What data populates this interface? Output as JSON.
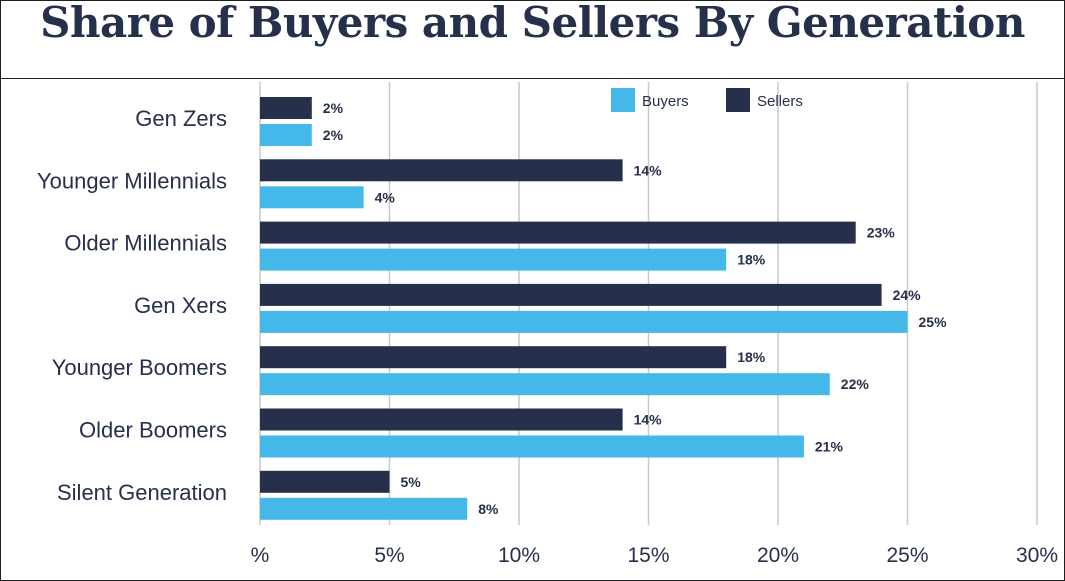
{
  "chart_data": {
    "type": "bar",
    "orientation": "horizontal",
    "title": "Share of Buyers and Sellers By Generation",
    "categories": [
      "Gen Zers",
      "Younger Millennials",
      "Older Millennials",
      "Gen Xers",
      "Younger Boomers",
      "Older Boomers",
      "Silent Generation"
    ],
    "series": [
      {
        "name": "Sellers",
        "color": "#27304a",
        "values": [
          2,
          14,
          23,
          24,
          18,
          14,
          5
        ],
        "labels": [
          "2%",
          "14%",
          "23%",
          "24%",
          "18%",
          "14%",
          "5%"
        ]
      },
      {
        "name": "Buyers",
        "color": "#45b8ea",
        "values": [
          2,
          4,
          18,
          25,
          22,
          21,
          8
        ],
        "labels": [
          "2%",
          "4%",
          "18%",
          "25%",
          "22%",
          "21%",
          "8%"
        ]
      }
    ],
    "legend": [
      "Buyers",
      "Sellers"
    ],
    "legend_position": "top-right",
    "xlim": [
      0,
      30
    ],
    "xticks": [
      0,
      5,
      10,
      15,
      20,
      25,
      30
    ],
    "xtick_labels": [
      "%",
      "5%",
      "10%",
      "15%",
      "20%",
      "25%",
      "30%"
    ],
    "grid": true
  }
}
